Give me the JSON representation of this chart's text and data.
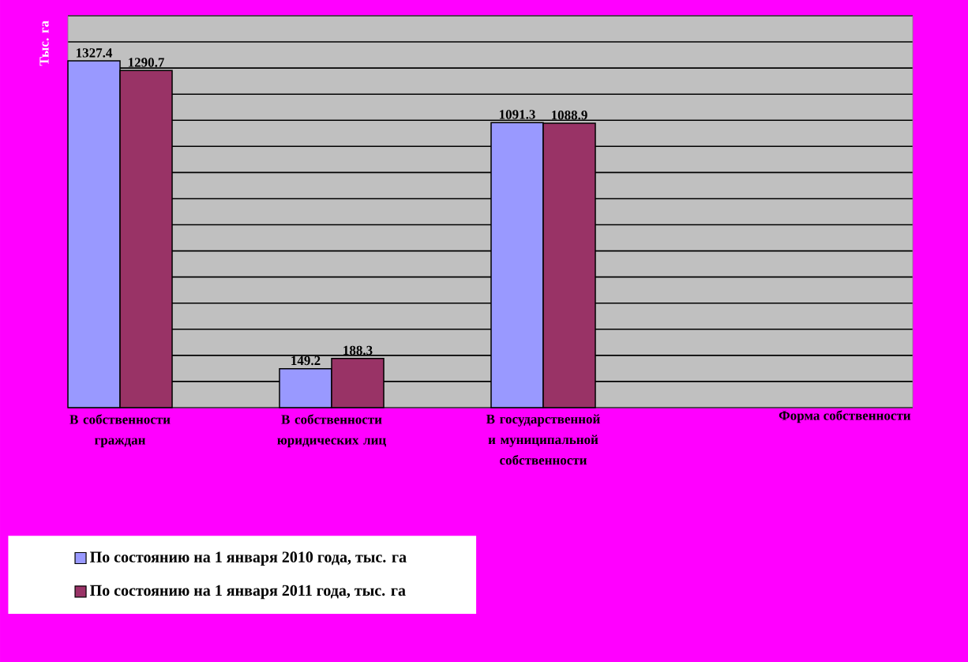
{
  "chart_data": {
    "type": "bar",
    "ylabel": "Тыс. га",
    "annotations": [
      "Форма собственности"
    ],
    "categories": [
      "В собственности граждан",
      "В собственности юридических лиц",
      "В государственной и муниципальной собственности"
    ],
    "series": [
      {
        "name": "По состоянию на 1 января 2010 года, тыс. га",
        "color": "#9999ff",
        "values": [
          1327.4,
          149.2,
          1091.3
        ]
      },
      {
        "name": "По состоянию на 1 января 2011 года, тыс. га",
        "color": "#993366",
        "values": [
          1290.7,
          188.3,
          1088.9
        ]
      }
    ],
    "ylim": [
      0,
      1500
    ],
    "yticks": [
      {
        "value": 0,
        "label": null
      },
      {
        "value": 100,
        "label": null
      },
      {
        "value": 200,
        "label": null
      },
      {
        "value": 300,
        "label": null
      },
      {
        "value": 400,
        "label": null
      },
      {
        "value": 500,
        "label": null
      },
      {
        "value": 600,
        "label": null
      },
      {
        "value": 700,
        "label": null
      },
      {
        "value": 800,
        "label": null
      },
      {
        "value": 900,
        "label": null
      },
      {
        "value": 1000,
        "label": null
      },
      {
        "value": 1100,
        "label": null
      },
      {
        "value": 1200,
        "label": null
      },
      {
        "value": 1300,
        "label": null
      },
      {
        "value": 1400,
        "label": null
      },
      {
        "value": 1500,
        "label": null
      }
    ],
    "grid": "y",
    "legend": "bottom left",
    "tick_labels": "x",
    "data_labels": true
  }
}
